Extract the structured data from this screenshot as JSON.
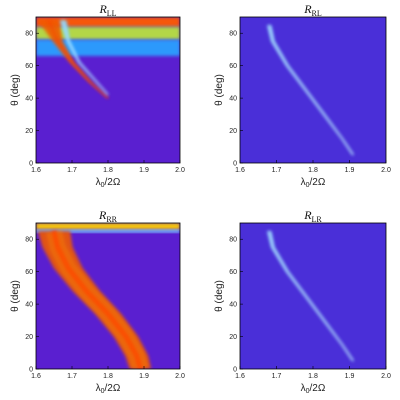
{
  "chart_data": [
    {
      "type": "heatmap",
      "title": "R",
      "title_subscript": "LL",
      "xlabel_main": "λ",
      "xlabel_sub": "0",
      "xlabel_rest": "/2Ω",
      "ylabel": "θ (deg)",
      "xlim": [
        1.6,
        2.0
      ],
      "ylim": [
        0,
        90
      ],
      "xticks": [
        "1.6",
        "1.7",
        "1.8",
        "1.9",
        "2.0"
      ],
      "yticks": [
        "0",
        "20",
        "40",
        "60",
        "80"
      ],
      "background": "#5a1fd0",
      "bands": [
        {
          "points": [
            [
              1.635,
              88
            ],
            [
              1.66,
              75
            ],
            [
              1.7,
              62
            ],
            [
              1.75,
              50
            ],
            [
              1.8,
              40
            ]
          ],
          "widths": [
            0.03,
            0.014,
            0.007,
            0.004,
            0.002
          ],
          "color": "#f05a00"
        },
        {
          "points": [
            [
              1.675,
              88
            ],
            [
              1.69,
              75
            ],
            [
              1.72,
              62
            ],
            [
              1.76,
              52
            ],
            [
              1.8,
              42
            ]
          ],
          "widths": [
            0.01,
            0.005,
            0.003,
            0.002,
            0.0015
          ],
          "color": "#7ad0ff"
        }
      ],
      "horizontal_bands": [
        {
          "y_from": 84,
          "y_to": 90,
          "color": "#ff5a00"
        },
        {
          "y_from": 76,
          "y_to": 84,
          "color": "#b8e040"
        },
        {
          "y_from": 66,
          "y_to": 76,
          "color": "#2aa0ff"
        }
      ]
    },
    {
      "type": "heatmap",
      "title": "R",
      "title_subscript": "RL",
      "xlabel_main": "λ",
      "xlabel_sub": "0",
      "xlabel_rest": "/2Ω",
      "ylabel": "θ (deg)",
      "xlim": [
        1.6,
        2.0
      ],
      "ylim": [
        0,
        90
      ],
      "xticks": [
        "1.6",
        "1.7",
        "1.8",
        "1.9",
        "2.0"
      ],
      "yticks": [
        "0",
        "20",
        "40",
        "60",
        "80"
      ],
      "background": "#4a2fd8",
      "bands": [
        {
          "points": [
            [
              1.68,
              85
            ],
            [
              1.69,
              75
            ],
            [
              1.73,
              60
            ],
            [
              1.78,
              45
            ],
            [
              1.83,
              30
            ],
            [
              1.88,
              15
            ],
            [
              1.91,
              5
            ]
          ],
          "widths": [
            0.006,
            0.005,
            0.004,
            0.003,
            0.003,
            0.002,
            0.002
          ],
          "color": "#8ad8ff"
        }
      ],
      "horizontal_bands": []
    },
    {
      "type": "heatmap",
      "title": "R",
      "title_subscript": "RR",
      "xlabel_main": "λ",
      "xlabel_sub": "0",
      "xlabel_rest": "/2Ω",
      "ylabel": "θ (deg)",
      "xlim": [
        1.6,
        2.0
      ],
      "ylim": [
        0,
        90
      ],
      "xticks": [
        "1.6",
        "1.7",
        "1.8",
        "1.9",
        "2.0"
      ],
      "yticks": [
        "0",
        "20",
        "40",
        "60",
        "80"
      ],
      "background": "#5a1fd0",
      "bands": [
        {
          "points": [
            [
              1.65,
              85
            ],
            [
              1.66,
              75
            ],
            [
              1.69,
              62
            ],
            [
              1.74,
              48
            ],
            [
              1.8,
              34
            ],
            [
              1.85,
              20
            ],
            [
              1.88,
              8
            ],
            [
              1.89,
              0
            ]
          ],
          "widths": [
            0.045,
            0.042,
            0.04,
            0.038,
            0.036,
            0.034,
            0.032,
            0.03
          ],
          "color": "#f05a00"
        }
      ],
      "horizontal_bands": [
        {
          "y_from": 86,
          "y_to": 90,
          "color": "#ffd000"
        },
        {
          "y_from": 84,
          "y_to": 86,
          "color": "#7ad0ff"
        }
      ]
    },
    {
      "type": "heatmap",
      "title": "R",
      "title_subscript": "LR",
      "xlabel_main": "λ",
      "xlabel_sub": "0",
      "xlabel_rest": "/2Ω",
      "ylabel": "θ (deg)",
      "xlim": [
        1.6,
        2.0
      ],
      "ylim": [
        0,
        90
      ],
      "xticks": [
        "1.6",
        "1.7",
        "1.8",
        "1.9",
        "2.0"
      ],
      "yticks": [
        "0",
        "20",
        "40",
        "60",
        "80"
      ],
      "background": "#4a2fd8",
      "bands": [
        {
          "points": [
            [
              1.68,
              85
            ],
            [
              1.69,
              75
            ],
            [
              1.73,
              60
            ],
            [
              1.78,
              45
            ],
            [
              1.83,
              30
            ],
            [
              1.88,
              15
            ],
            [
              1.91,
              5
            ]
          ],
          "widths": [
            0.006,
            0.005,
            0.004,
            0.003,
            0.003,
            0.002,
            0.002
          ],
          "color": "#8ad8ff"
        }
      ],
      "horizontal_bands": []
    }
  ]
}
